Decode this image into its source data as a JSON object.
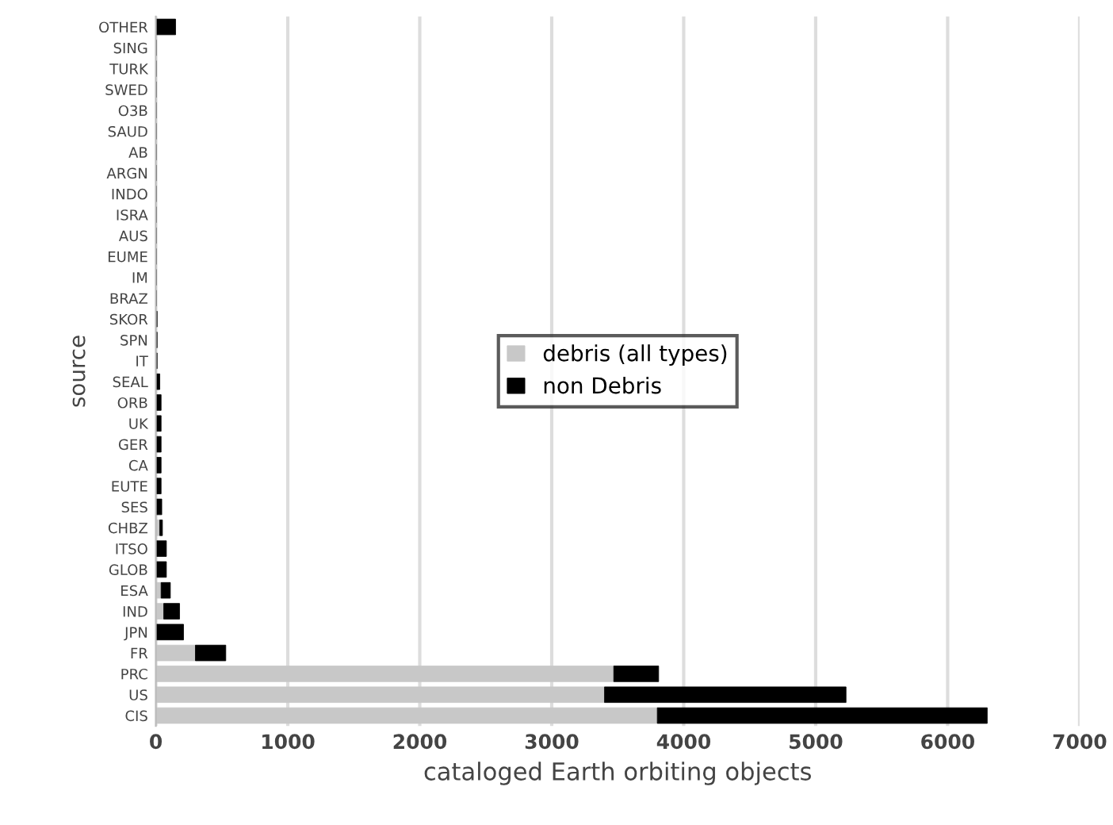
{
  "chart_data": {
    "type": "bar",
    "orientation": "horizontal",
    "stacked": true,
    "categories": [
      "OTHER",
      "SING",
      "TURK",
      "SWED",
      "O3B",
      "SAUD",
      "AB",
      "ARGN",
      "INDO",
      "ISRA",
      "AUS",
      "EUME",
      "IM",
      "BRAZ",
      "SKOR",
      "SPN",
      "IT",
      "SEAL",
      "ORB",
      "UK",
      "GER",
      "CA",
      "EUTE",
      "SES",
      "CHBZ",
      "ITSO",
      "GLOB",
      "ESA",
      "IND",
      "JPN",
      "FR",
      "PRC",
      "US",
      "CIS"
    ],
    "series": [
      {
        "name": "debris (all types)",
        "color": "#c8c8c8",
        "values": [
          0,
          0,
          0,
          0,
          0,
          0,
          0,
          0,
          0,
          0,
          0,
          0,
          0,
          0,
          0,
          0,
          0,
          0,
          0,
          0,
          0,
          0,
          0,
          0,
          30,
          0,
          0,
          40,
          60,
          0,
          300,
          3470,
          3400,
          3800
        ]
      },
      {
        "name": "non Debris",
        "color": "#000000",
        "values": [
          150,
          5,
          5,
          5,
          5,
          5,
          5,
          5,
          5,
          5,
          5,
          5,
          5,
          5,
          10,
          10,
          10,
          30,
          40,
          40,
          40,
          40,
          40,
          45,
          20,
          80,
          80,
          70,
          120,
          210,
          230,
          340,
          1830,
          2500
        ]
      }
    ],
    "xlim": [
      0,
      7000
    ],
    "xticks": [
      0,
      1000,
      2000,
      3000,
      4000,
      5000,
      6000,
      7000
    ],
    "xlabel": "cataloged Earth orbiting objects",
    "ylabel": "source",
    "grid": "x",
    "legend": "center"
  }
}
